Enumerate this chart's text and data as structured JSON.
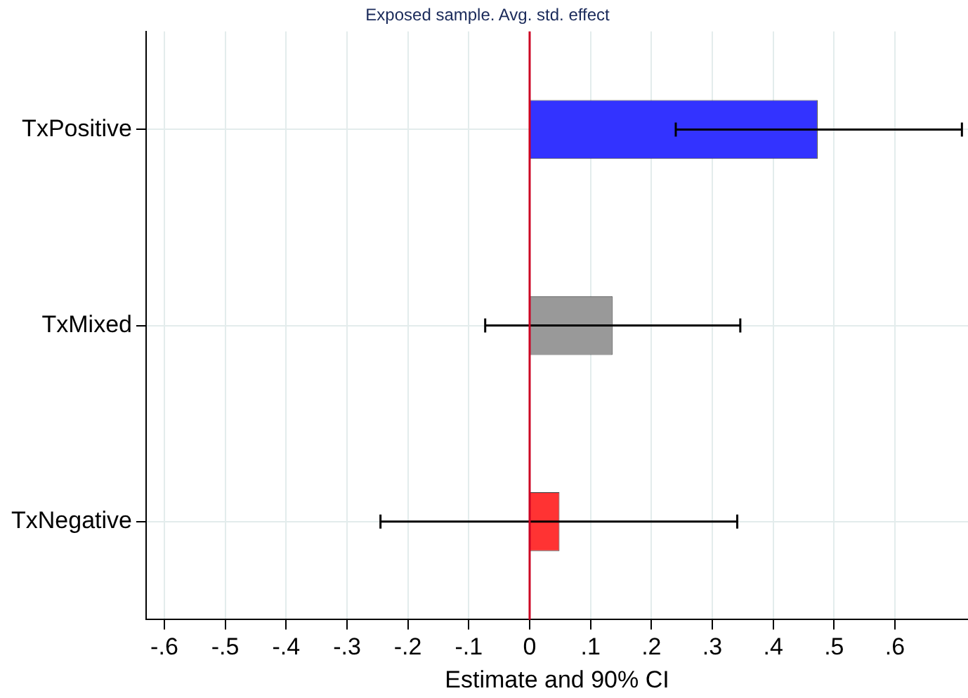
{
  "chart_data": {
    "type": "bar",
    "orientation": "horizontal",
    "title": "Exposed sample. Avg. std. effect",
    "xlabel": "Estimate and 90% CI",
    "categories": [
      "TxPositive",
      "TxMixed",
      "TxNegative"
    ],
    "values": [
      0.473,
      0.136,
      0.049
    ],
    "colors": [
      "#3333ff",
      "#999999",
      "#ff3333"
    ],
    "errors": [
      [
        0.24,
        0.71
      ],
      [
        -0.073,
        0.346
      ],
      [
        -0.245,
        0.341
      ]
    ],
    "xlim": [
      -0.63,
      0.72
    ],
    "xticks": [
      {
        "value": -0.6,
        "label": "-.6"
      },
      {
        "value": -0.5,
        "label": "-.5"
      },
      {
        "value": -0.4,
        "label": "-.4"
      },
      {
        "value": -0.3,
        "label": "-.3"
      },
      {
        "value": -0.2,
        "label": "-.2"
      },
      {
        "value": -0.1,
        "label": "-.1"
      },
      0,
      {
        "value": 0.1,
        "label": ".1"
      },
      {
        "value": 0.2,
        "label": ".2"
      },
      {
        "value": 0.3,
        "label": ".3"
      },
      {
        "value": 0.4,
        "label": ".4"
      },
      {
        "value": 0.5,
        "label": ".5"
      },
      {
        "value": 0.6,
        "label": ".6"
      }
    ],
    "ref_lines": [
      {
        "axis": "x",
        "value": 0,
        "color": "#cc0022"
      }
    ],
    "grid": true,
    "legend": false
  }
}
